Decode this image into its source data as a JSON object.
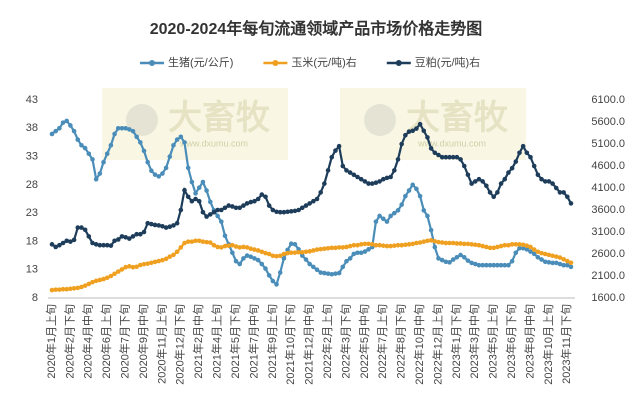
{
  "chart_data": {
    "type": "line",
    "title": "2020-2024年每旬流通领域产品市场价格走势图",
    "watermark": "大畜牧",
    "watermark_url": "www.dxumu.com",
    "categories": [
      "2020年1月上旬",
      null,
      null,
      null,
      null,
      "2020年2月下旬",
      null,
      null,
      null,
      null,
      "2020年4月中旬",
      null,
      null,
      null,
      null,
      "2020年6月上旬",
      null,
      null,
      null,
      null,
      "2020年7月下旬",
      null,
      null,
      null,
      null,
      "2020年9月中旬",
      null,
      null,
      null,
      null,
      "2020年11月上旬",
      null,
      null,
      null,
      null,
      "2020年12月下旬",
      null,
      null,
      null,
      null,
      "2021年2月中旬",
      null,
      null,
      null,
      null,
      "2021年4月上旬",
      null,
      null,
      null,
      null,
      "2021年5月下旬",
      null,
      null,
      null,
      null,
      "2021年7月中旬",
      null,
      null,
      null,
      null,
      "2021年9月上旬",
      null,
      null,
      null,
      null,
      "2021年10月下旬",
      null,
      null,
      null,
      null,
      "2021年12月中旬",
      null,
      null,
      null,
      null,
      "2022年2月上旬",
      null,
      null,
      null,
      null,
      "2022年3月下旬",
      null,
      null,
      null,
      null,
      "2022年5月中旬",
      null,
      null,
      null,
      null,
      "2022年7月上旬",
      null,
      null,
      null,
      null,
      "2022年8月下旬",
      null,
      null,
      null,
      null,
      "2022年10月中旬",
      null,
      null,
      null,
      null,
      "2022年12月上旬",
      null,
      null,
      null,
      null,
      "2023年1月下旬",
      null,
      null,
      null,
      null,
      "2023年3月中旬",
      null,
      null,
      null,
      null,
      "2023年5月上旬",
      null,
      null,
      null,
      null,
      "2023年6月下旬",
      null,
      null,
      null,
      null,
      "2023年8月中旬",
      null,
      null,
      null,
      null,
      "2023年10月上旬",
      null,
      null,
      null,
      null,
      "2023年11月下旬",
      null
    ],
    "series": [
      {
        "name": "生猪(元/公斤)",
        "color": "#4a8db8",
        "axis": "y",
        "values": [
          37,
          37.5,
          38,
          39,
          39.3,
          38.5,
          37.5,
          36,
          35,
          34.5,
          33.5,
          32.5,
          29,
          30,
          32,
          33.5,
          35,
          37,
          38,
          38,
          38,
          37.8,
          37.5,
          36.5,
          35.5,
          34,
          32,
          30.5,
          29.8,
          29.5,
          30,
          31,
          33,
          35,
          36,
          36.5,
          35.5,
          31,
          28.5,
          26.5,
          27.5,
          28.5,
          27,
          25,
          23.5,
          22.5,
          21.5,
          19,
          17.5,
          16,
          14.5,
          14,
          15,
          15.5,
          15.3,
          15,
          14.7,
          14,
          13.2,
          12,
          11,
          10.4,
          12.5,
          15,
          16.5,
          17.6,
          17.5,
          16.6,
          15.5,
          14.8,
          14,
          13.5,
          13,
          12.5,
          12.4,
          12.3,
          12.2,
          12.3,
          12.4,
          13.5,
          14.5,
          15,
          15.8,
          16,
          16,
          16.2,
          16.6,
          17,
          21.5,
          22.5,
          22,
          21.5,
          22.5,
          23,
          23.5,
          24.5,
          26,
          27,
          28,
          27.3,
          26,
          23.5,
          22.5,
          20,
          17,
          15,
          14.7,
          14.4,
          14.3,
          14.8,
          15.2,
          15.6,
          15.2,
          14.6,
          14.2,
          14,
          13.8,
          13.8,
          13.8,
          13.8,
          13.8,
          13.8,
          13.8,
          13.8,
          13.8,
          14.5,
          16,
          16.8,
          16.8,
          16.6,
          16.2,
          15.8,
          15.2,
          14.8,
          14.4,
          14.3,
          14.2,
          14.2,
          14,
          13.8,
          13.8,
          13.5
        ]
      },
      {
        "name": "玉米(元/吨)右",
        "color": "#f0a020",
        "axis": "y2",
        "values": [
          1780,
          1790,
          1790,
          1800,
          1800,
          1810,
          1820,
          1830,
          1850,
          1880,
          1920,
          1960,
          1990,
          2010,
          2030,
          2060,
          2100,
          2150,
          2200,
          2250,
          2300,
          2320,
          2300,
          2310,
          2350,
          2370,
          2380,
          2400,
          2420,
          2440,
          2460,
          2490,
          2540,
          2580,
          2650,
          2750,
          2850,
          2880,
          2880,
          2900,
          2900,
          2880,
          2870,
          2860,
          2800,
          2760,
          2750,
          2780,
          2790,
          2800,
          2770,
          2750,
          2760,
          2750,
          2720,
          2700,
          2680,
          2650,
          2620,
          2600,
          2560,
          2550,
          2560,
          2600,
          2620,
          2630,
          2630,
          2640,
          2640,
          2650,
          2660,
          2680,
          2700,
          2710,
          2720,
          2730,
          2740,
          2740,
          2750,
          2750,
          2760,
          2780,
          2800,
          2800,
          2820,
          2830,
          2830,
          2820,
          2800,
          2800,
          2790,
          2780,
          2780,
          2790,
          2800,
          2800,
          2810,
          2820,
          2830,
          2850,
          2860,
          2880,
          2900,
          2910,
          2890,
          2870,
          2860,
          2850,
          2850,
          2850,
          2840,
          2840,
          2830,
          2830,
          2820,
          2810,
          2800,
          2780,
          2760,
          2740,
          2740,
          2760,
          2780,
          2800,
          2800,
          2820,
          2820,
          2820,
          2810,
          2790,
          2760,
          2700,
          2650,
          2620,
          2600,
          2580,
          2560,
          2540,
          2520,
          2480,
          2440,
          2400
        ]
      },
      {
        "name": "豆粕(元/吨)右",
        "color": "#1e3d5a",
        "axis": "y2",
        "values": [
          2820,
          2760,
          2800,
          2850,
          2900,
          2880,
          2920,
          3200,
          3200,
          3150,
          3000,
          2850,
          2820,
          2800,
          2800,
          2800,
          2790,
          2900,
          2930,
          3000,
          2980,
          2950,
          3000,
          3050,
          3050,
          3100,
          3300,
          3280,
          3260,
          3250,
          3230,
          3200,
          3220,
          3250,
          3300,
          3600,
          4050,
          3900,
          3800,
          3850,
          3800,
          3550,
          3450,
          3500,
          3550,
          3600,
          3600,
          3650,
          3700,
          3680,
          3650,
          3650,
          3700,
          3750,
          3780,
          3800,
          3850,
          3950,
          3900,
          3700,
          3600,
          3560,
          3550,
          3550,
          3560,
          3570,
          3580,
          3600,
          3650,
          3700,
          3750,
          3800,
          3850,
          4000,
          4200,
          4500,
          4800,
          4950,
          5050,
          4600,
          4500,
          4450,
          4400,
          4350,
          4300,
          4250,
          4200,
          4200,
          4220,
          4250,
          4300,
          4330,
          4350,
          4500,
          4750,
          5100,
          5300,
          5380,
          5400,
          5450,
          5550,
          5400,
          5250,
          5000,
          4900,
          4850,
          4800,
          4800,
          4800,
          4800,
          4800,
          4750,
          4600,
          4400,
          4200,
          4250,
          4300,
          4250,
          4150,
          4000,
          3900,
          4000,
          4200,
          4300,
          4450,
          4550,
          4700,
          4900,
          5050,
          4900,
          4800,
          4600,
          4400,
          4300,
          4250,
          4250,
          4200,
          4100,
          4000,
          4000,
          3900,
          3750
        ]
      }
    ],
    "ylim": [
      8,
      43
    ],
    "yticks": [
      8,
      13,
      18,
      23,
      28,
      33,
      38,
      43
    ],
    "y2lim": [
      1600,
      6100
    ],
    "y2ticks": [
      {
        "value": 1600,
        "label": "1600.0"
      },
      {
        "value": 2100,
        "label": "2100.0"
      },
      {
        "value": 2600,
        "label": "2600.0"
      },
      {
        "value": 3100,
        "label": "3100.0"
      },
      {
        "value": 3600,
        "label": "3600.0"
      },
      {
        "value": 4100,
        "label": "4100.0"
      },
      {
        "value": 4600,
        "label": "4600.0"
      },
      {
        "value": 5100,
        "label": "5100.0"
      },
      {
        "value": 5600,
        "label": "5600.0"
      },
      {
        "value": 6100,
        "label": "6100.0"
      }
    ],
    "grid": false,
    "legend": "top"
  }
}
